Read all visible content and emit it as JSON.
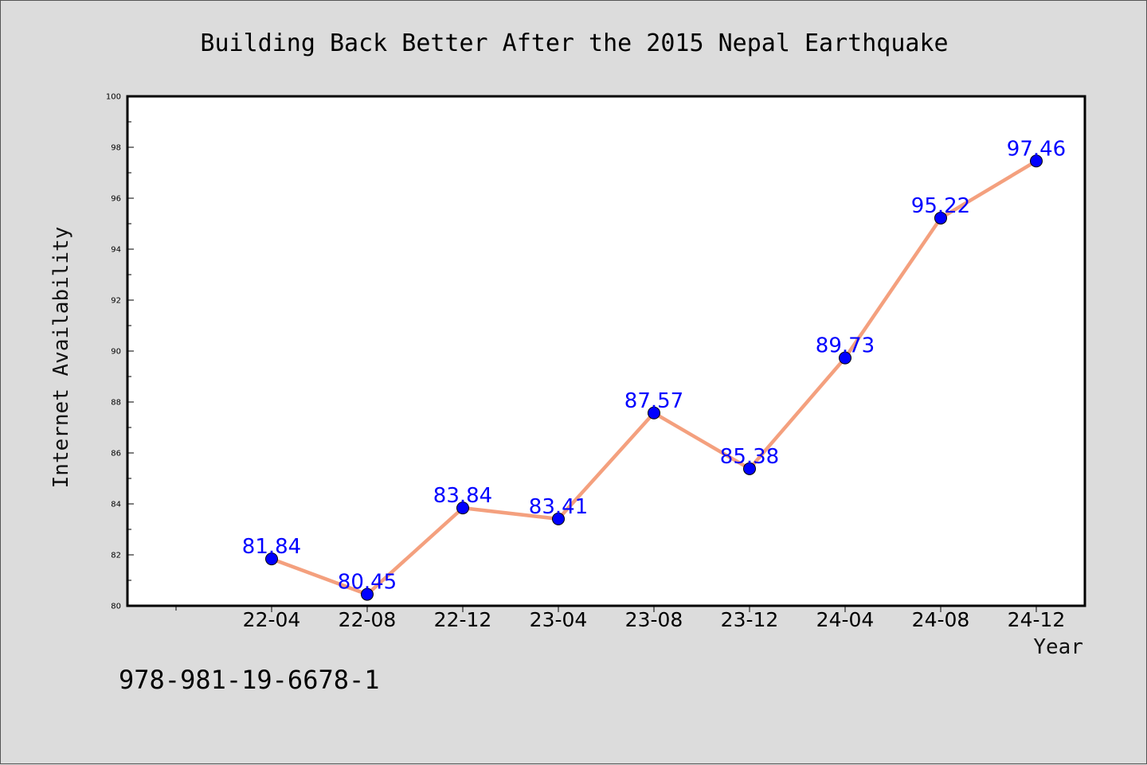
{
  "chart_data": {
    "type": "line",
    "title": "Building Back Better After the 2015 Nepal Earthquake",
    "xlabel": "Year",
    "ylabel": "Internet Availability",
    "categories": [
      "22-04",
      "22-08",
      "22-12",
      "23-04",
      "23-08",
      "23-12",
      "24-04",
      "24-08",
      "24-12"
    ],
    "series": [
      {
        "values": [
          81.84,
          80.45,
          83.84,
          83.41,
          87.57,
          85.38,
          89.73,
          95.22,
          97.46
        ],
        "labels": [
          "81.84",
          "80.45",
          "83.84",
          "83.41",
          "87.57",
          "85.38",
          "89.73",
          "95.22",
          "97.46"
        ]
      }
    ],
    "ylim": [
      80,
      100
    ],
    "yticks": [
      80,
      82,
      84,
      86,
      88,
      90,
      92,
      94,
      96,
      98,
      100
    ],
    "grid": false,
    "line_color": "#f4a07e",
    "marker_color": "#0000ff",
    "label_color": "#0000ff"
  },
  "footnote": "978-981-19-6678-1"
}
